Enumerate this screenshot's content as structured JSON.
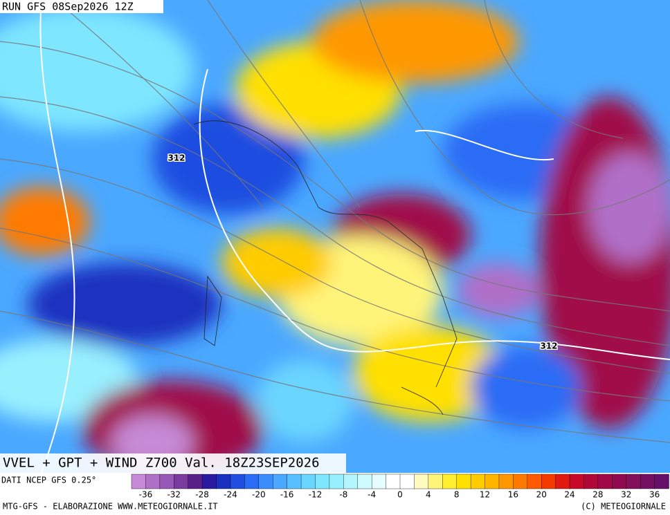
{
  "header": {
    "run": "RUN GFS 08Sep2026 12Z"
  },
  "map": {
    "contour_labels": [
      "312",
      "312"
    ]
  },
  "footer": {
    "product": "VVEL + GPT + WIND Z700 Val. 18Z23SEP2026",
    "source": "DATI NCEP GFS 0.25°",
    "credit": "MTG-GFS - ELABORAZIONE WWW.METEOGIORNALE.IT",
    "copyright": "(C) METEOGIORNALE"
  },
  "colorbar": {
    "labels": [
      "-36",
      "-32",
      "-28",
      "-24",
      "-20",
      "-16",
      "-12",
      "-8",
      "-4",
      "0",
      "4",
      "8",
      "12",
      "16",
      "20",
      "24",
      "28",
      "32",
      "36"
    ],
    "colors": [
      "#c68ad6",
      "#b070c8",
      "#9858b8",
      "#7a3aa0",
      "#582088",
      "#2a1aa0",
      "#1a30c0",
      "#1f4ee0",
      "#2a6cf5",
      "#3a8cff",
      "#4aa8ff",
      "#58c0ff",
      "#6ad6ff",
      "#7ee6ff",
      "#98f0ff",
      "#b4f6ff",
      "#cffaff",
      "#e6fdff",
      "#ffffff",
      "#ffffff",
      "#fffbc0",
      "#fff47a",
      "#ffee30",
      "#ffe000",
      "#ffcc00",
      "#ffb400",
      "#ff9800",
      "#ff7a00",
      "#ff5a00",
      "#f53a00",
      "#e01a10",
      "#c80a28",
      "#b00838",
      "#a00848",
      "#900a50",
      "#82105a",
      "#741062",
      "#66106a"
    ]
  }
}
